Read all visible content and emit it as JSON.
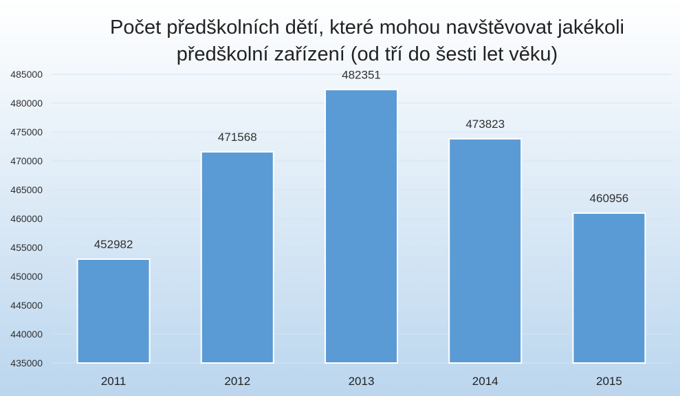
{
  "chart_data": {
    "type": "bar",
    "title": "Počet předškolních dětí, které mohou navštěvovat jakékoli předškolní zařízení (od tří do šesti let věku)",
    "title_lines": [
      "Počet předškolních dětí, které mohou navštěvovat jakékoli",
      "předškolní zařízení (od tří do šesti let věku)"
    ],
    "categories": [
      "2011",
      "2012",
      "2013",
      "2014",
      "2015"
    ],
    "values": [
      452982,
      471568,
      482351,
      473823,
      460956
    ],
    "value_labels": [
      "452982",
      "471568",
      "482351",
      "473823",
      "460956"
    ],
    "ylim": [
      435000,
      485000
    ],
    "yticks": [
      435000,
      440000,
      445000,
      450000,
      455000,
      460000,
      465000,
      470000,
      475000,
      480000,
      485000
    ],
    "ytick_labels": [
      "435000",
      "440000",
      "445000",
      "450000",
      "455000",
      "460000",
      "465000",
      "470000",
      "475000",
      "480000",
      "485000"
    ],
    "grid": true,
    "legend": "none",
    "colors": {
      "bar": "#5B9BD5",
      "bar_stroke": "#FFFFFF",
      "grid": "#D6E3F2",
      "text": "#222222",
      "axis_text": "#303030",
      "background_top": "#FFFFFF",
      "background_bottom": "#BBD6EE"
    }
  }
}
